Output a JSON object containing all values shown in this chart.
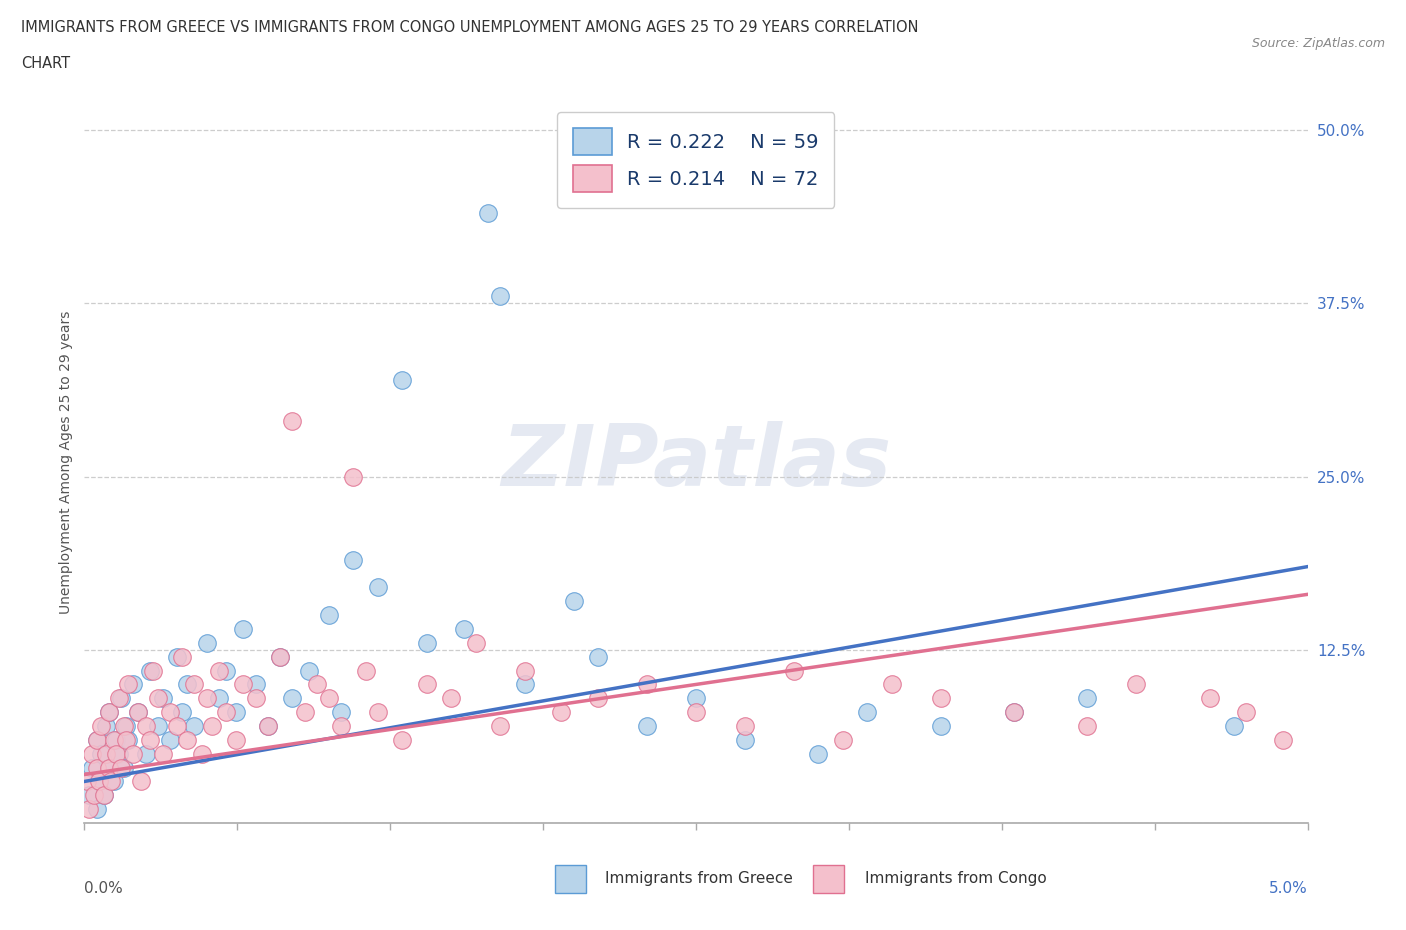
{
  "title_line1": "IMMIGRANTS FROM GREECE VS IMMIGRANTS FROM CONGO UNEMPLOYMENT AMONG AGES 25 TO 29 YEARS CORRELATION",
  "title_line2": "CHART",
  "source_text": "Source: ZipAtlas.com",
  "ylabel": "Unemployment Among Ages 25 to 29 years",
  "xlim": [
    0.0,
    5.0
  ],
  "ylim": [
    0.0,
    52.0
  ],
  "yticks": [
    0.0,
    12.5,
    25.0,
    37.5,
    50.0
  ],
  "ytick_labels": [
    "",
    "12.5%",
    "25.0%",
    "37.5%",
    "50.0%"
  ],
  "greece_color": "#b8d4ea",
  "greece_edge_color": "#5b9bd5",
  "congo_color": "#f4c0cc",
  "congo_edge_color": "#e07090",
  "greece_line_color": "#4472c4",
  "congo_line_color": "#e07090",
  "legend_R_greece": "R = 0.222",
  "legend_N_greece": "N = 59",
  "legend_R_congo": "R = 0.214",
  "legend_N_congo": "N = 72",
  "watermark": "ZIPatlas",
  "background_color": "#ffffff",
  "grid_color": "#c8c8c8",
  "text_dark": "#1a3a6b",
  "greece_x": [
    0.02,
    0.03,
    0.05,
    0.05,
    0.06,
    0.07,
    0.08,
    0.09,
    0.1,
    0.1,
    0.12,
    0.13,
    0.14,
    0.15,
    0.16,
    0.17,
    0.18,
    0.2,
    0.22,
    0.25,
    0.27,
    0.3,
    0.32,
    0.35,
    0.38,
    0.4,
    0.42,
    0.45,
    0.5,
    0.55,
    0.58,
    0.62,
    0.65,
    0.7,
    0.75,
    0.8,
    0.85,
    0.92,
    1.0,
    1.05,
    1.1,
    1.2,
    1.3,
    1.4,
    1.55,
    1.65,
    1.7,
    1.8,
    2.0,
    2.1,
    2.3,
    2.5,
    2.7,
    3.0,
    3.2,
    3.5,
    3.8,
    4.1,
    4.7
  ],
  "greece_y": [
    2.0,
    4.0,
    1.0,
    6.0,
    3.0,
    5.0,
    2.0,
    7.0,
    4.0,
    8.0,
    3.0,
    6.0,
    5.0,
    9.0,
    4.0,
    7.0,
    6.0,
    10.0,
    8.0,
    5.0,
    11.0,
    7.0,
    9.0,
    6.0,
    12.0,
    8.0,
    10.0,
    7.0,
    13.0,
    9.0,
    11.0,
    8.0,
    14.0,
    10.0,
    7.0,
    12.0,
    9.0,
    11.0,
    15.0,
    8.0,
    19.0,
    17.0,
    32.0,
    13.0,
    14.0,
    44.0,
    38.0,
    10.0,
    16.0,
    12.0,
    7.0,
    9.0,
    6.0,
    5.0,
    8.0,
    7.0,
    8.0,
    9.0,
    7.0
  ],
  "congo_x": [
    0.01,
    0.02,
    0.03,
    0.04,
    0.05,
    0.05,
    0.06,
    0.07,
    0.08,
    0.09,
    0.1,
    0.1,
    0.11,
    0.12,
    0.13,
    0.14,
    0.15,
    0.16,
    0.17,
    0.18,
    0.2,
    0.22,
    0.23,
    0.25,
    0.27,
    0.28,
    0.3,
    0.32,
    0.35,
    0.38,
    0.4,
    0.42,
    0.45,
    0.48,
    0.5,
    0.52,
    0.55,
    0.58,
    0.62,
    0.65,
    0.7,
    0.75,
    0.8,
    0.85,
    0.9,
    0.95,
    1.0,
    1.05,
    1.1,
    1.15,
    1.2,
    1.3,
    1.4,
    1.5,
    1.6,
    1.7,
    1.8,
    1.95,
    2.1,
    2.3,
    2.5,
    2.7,
    2.9,
    3.1,
    3.3,
    3.5,
    3.8,
    4.1,
    4.3,
    4.6,
    4.75,
    4.9
  ],
  "congo_y": [
    3.0,
    1.0,
    5.0,
    2.0,
    6.0,
    4.0,
    3.0,
    7.0,
    2.0,
    5.0,
    4.0,
    8.0,
    3.0,
    6.0,
    5.0,
    9.0,
    4.0,
    7.0,
    6.0,
    10.0,
    5.0,
    8.0,
    3.0,
    7.0,
    6.0,
    11.0,
    9.0,
    5.0,
    8.0,
    7.0,
    12.0,
    6.0,
    10.0,
    5.0,
    9.0,
    7.0,
    11.0,
    8.0,
    6.0,
    10.0,
    9.0,
    7.0,
    12.0,
    29.0,
    8.0,
    10.0,
    9.0,
    7.0,
    25.0,
    11.0,
    8.0,
    6.0,
    10.0,
    9.0,
    13.0,
    7.0,
    11.0,
    8.0,
    9.0,
    10.0,
    8.0,
    7.0,
    11.0,
    6.0,
    10.0,
    9.0,
    8.0,
    7.0,
    10.0,
    9.0,
    8.0,
    6.0
  ]
}
